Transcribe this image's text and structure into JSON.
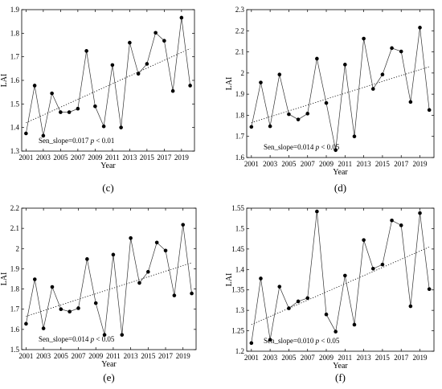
{
  "chart_data": [
    {
      "type": "line",
      "caption": "(c)",
      "xlabel": "Year",
      "ylabel": "LAI",
      "x": [
        2001,
        2002,
        2003,
        2004,
        2005,
        2006,
        2007,
        2008,
        2009,
        2010,
        2011,
        2012,
        2013,
        2014,
        2015,
        2016,
        2017,
        2018,
        2019,
        2020
      ],
      "xticks": [
        "2001",
        "2003",
        "2005",
        "2007",
        "2009",
        "2011",
        "2013",
        "2015",
        "2017",
        "2019"
      ],
      "ylim": [
        1.3,
        1.9
      ],
      "yticks": [
        "1.3",
        "1.4",
        "1.5",
        "1.6",
        "1.7",
        "1.8",
        "1.9"
      ],
      "series": [
        {
          "values": [
            1.375,
            1.578,
            1.365,
            1.545,
            1.465,
            1.465,
            1.48,
            1.725,
            1.49,
            1.405,
            1.665,
            1.4,
            1.76,
            1.628,
            1.67,
            1.802,
            1.768,
            1.555,
            1.866,
            1.578
          ]
        }
      ],
      "trend": [
        1.42,
        1.735
      ],
      "annotation": {
        "text": "Sen_slope=0.017 ",
        "p_italic": "p",
        "p_rest": " < 0.01"
      }
    },
    {
      "type": "line",
      "caption": "(d)",
      "xlabel": "Year",
      "ylabel": "LAI",
      "x": [
        2001,
        2002,
        2003,
        2004,
        2005,
        2006,
        2007,
        2008,
        2009,
        2010,
        2011,
        2012,
        2013,
        2014,
        2015,
        2016,
        2017,
        2018,
        2019,
        2020
      ],
      "xticks": [
        "2001",
        "2003",
        "2005",
        "2007",
        "2009",
        "2011",
        "2013",
        "2015",
        "2017",
        "2019"
      ],
      "ylim": [
        1.6,
        2.3
      ],
      "yticks": [
        "1.6",
        "1.7",
        "1.8",
        "1.9",
        "2",
        "2.1",
        "2.2",
        "2.3"
      ],
      "series": [
        {
          "values": [
            1.745,
            1.955,
            1.748,
            1.993,
            1.805,
            1.78,
            1.808,
            2.068,
            1.858,
            1.635,
            2.04,
            1.7,
            2.163,
            1.925,
            1.993,
            2.118,
            2.102,
            1.863,
            2.215,
            1.825
          ]
        }
      ],
      "trend": [
        1.765,
        2.03
      ],
      "annotation": {
        "text": "Sen_slope=0.014 ",
        "p_italic": "p",
        "p_rest": " < 0.05"
      }
    },
    {
      "type": "line",
      "caption": "(e)",
      "xlabel": "Year",
      "ylabel": "LAI",
      "x": [
        2001,
        2002,
        2003,
        2004,
        2005,
        2006,
        2007,
        2008,
        2009,
        2010,
        2011,
        2012,
        2013,
        2014,
        2015,
        2016,
        2017,
        2018,
        2019,
        2020
      ],
      "xticks": [
        "2001",
        "2003",
        "2005",
        "2007",
        "2009",
        "2011",
        "2013",
        "2015",
        "2017",
        "2019"
      ],
      "ylim": [
        1.5,
        2.2
      ],
      "yticks": [
        "1.5",
        "1.6",
        "1.7",
        "1.8",
        "1.9",
        "2",
        "2.1",
        "2.2"
      ],
      "series": [
        {
          "values": [
            1.628,
            1.848,
            1.605,
            1.81,
            1.7,
            1.688,
            1.705,
            1.948,
            1.73,
            1.573,
            1.97,
            1.573,
            2.052,
            1.83,
            1.885,
            2.03,
            1.99,
            1.768,
            2.118,
            1.778
          ]
        }
      ],
      "trend": [
        1.665,
        1.93
      ],
      "annotation": {
        "text": "Sen_slope=0.014 ",
        "p_italic": "p",
        "p_rest": " < 0.05"
      }
    },
    {
      "type": "line",
      "caption": "(f)",
      "xlabel": "Year",
      "ylabel": "LAI",
      "x": [
        2001,
        2002,
        2003,
        2004,
        2005,
        2006,
        2007,
        2008,
        2009,
        2010,
        2011,
        2012,
        2013,
        2014,
        2015,
        2016,
        2017,
        2018,
        2019,
        2020
      ],
      "xticks": [
        "2001",
        "2003",
        "2005",
        "2007",
        "2009",
        "2011",
        "2013",
        "2015",
        "2017",
        "2019"
      ],
      "ylim": [
        1.2,
        1.55
      ],
      "yticks": [
        "1.2",
        "1.25",
        "1.3",
        "1.35",
        "1.4",
        "1.45",
        "1.5",
        "1.55"
      ],
      "series": [
        {
          "values": [
            1.22,
            1.378,
            1.228,
            1.358,
            1.305,
            1.322,
            1.33,
            1.542,
            1.29,
            1.248,
            1.385,
            1.265,
            1.472,
            1.402,
            1.412,
            1.52,
            1.508,
            1.31,
            1.538,
            1.352
          ]
        }
      ],
      "trend": [
        1.265,
        1.455
      ],
      "annotation": {
        "text": "Sen_slope=0.010 ",
        "p_italic": "p",
        "p_rest": " < 0.05"
      }
    }
  ]
}
